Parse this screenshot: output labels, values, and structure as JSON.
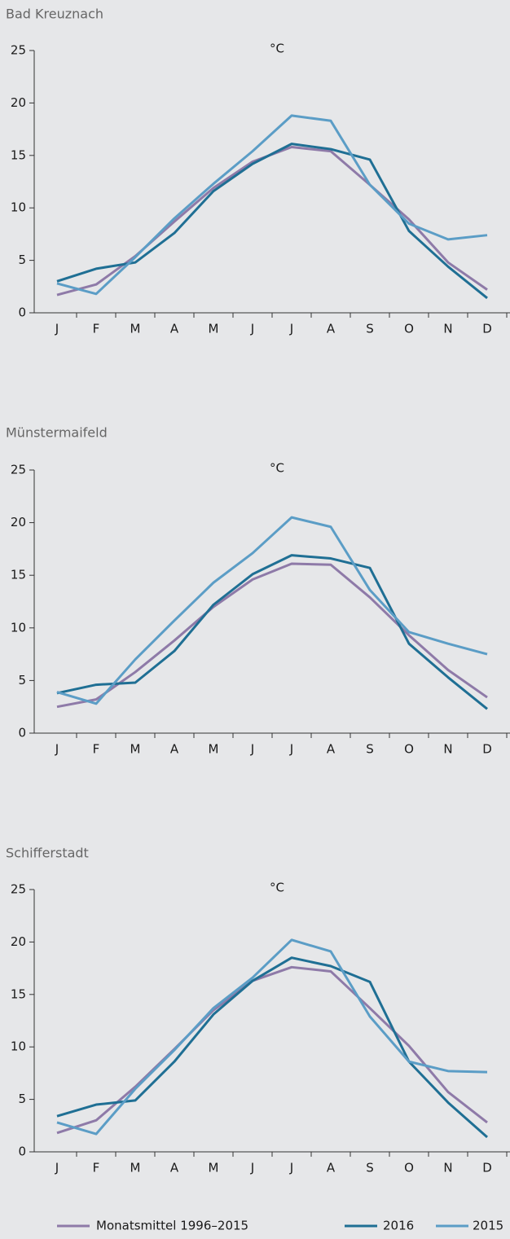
{
  "chart_data": [
    {
      "type": "line",
      "title": "Bad Kreuznach",
      "unit": "°C",
      "categories": [
        "J",
        "F",
        "M",
        "A",
        "M",
        "J",
        "J",
        "A",
        "S",
        "O",
        "N",
        "D"
      ],
      "ylim": [
        0,
        25
      ],
      "yticks": [
        0,
        5,
        10,
        15,
        20,
        25
      ],
      "series": [
        {
          "name": "Monatsmittel 1996–2015",
          "color": "#8e7aa8",
          "values": [
            1.7,
            2.7,
            5.4,
            8.7,
            11.9,
            14.4,
            15.8,
            15.4,
            12.2,
            8.9,
            4.8,
            2.2
          ]
        },
        {
          "name": "2016",
          "color": "#1f6f94",
          "values": [
            3.0,
            4.2,
            4.8,
            7.6,
            11.6,
            14.2,
            16.1,
            15.6,
            14.6,
            7.8,
            4.4,
            1.4
          ]
        },
        {
          "name": "2015",
          "color": "#5b9dc6",
          "values": [
            2.8,
            1.8,
            5.3,
            9.0,
            12.3,
            15.4,
            18.8,
            18.3,
            12.2,
            8.5,
            7.0,
            7.4
          ]
        }
      ]
    },
    {
      "type": "line",
      "title": "Münstermaifeld",
      "unit": "°C",
      "categories": [
        "J",
        "F",
        "M",
        "A",
        "M",
        "J",
        "J",
        "A",
        "S",
        "O",
        "N",
        "D"
      ],
      "ylim": [
        0,
        25
      ],
      "yticks": [
        0,
        5,
        10,
        15,
        20,
        25
      ],
      "series": [
        {
          "color": "#8e7aa8",
          "values": [
            2.5,
            3.2,
            5.8,
            8.8,
            12.0,
            14.6,
            16.1,
            16.0,
            12.9,
            9.3,
            6.0,
            3.4
          ]
        },
        {
          "color": "#1f6f94",
          "values": [
            3.8,
            4.6,
            4.8,
            7.8,
            12.2,
            15.1,
            16.9,
            16.6,
            15.7,
            8.5,
            5.3,
            2.3
          ]
        },
        {
          "color": "#5b9dc6",
          "values": [
            3.9,
            2.8,
            7.0,
            10.7,
            14.3,
            17.1,
            20.5,
            19.6,
            13.6,
            9.6,
            8.5,
            7.5
          ]
        }
      ]
    },
    {
      "type": "line",
      "title": "Schifferstadt",
      "unit": "°C",
      "categories": [
        "J",
        "F",
        "M",
        "A",
        "M",
        "J",
        "J",
        "A",
        "S",
        "O",
        "N",
        "D"
      ],
      "ylim": [
        0,
        25
      ],
      "yticks": [
        0,
        5,
        10,
        15,
        20,
        25
      ],
      "series": [
        {
          "color": "#8e7aa8",
          "values": [
            1.8,
            3.0,
            6.2,
            9.8,
            13.5,
            16.3,
            17.6,
            17.2,
            13.7,
            10.1,
            5.7,
            2.8
          ]
        },
        {
          "color": "#1f6f94",
          "values": [
            3.4,
            4.5,
            4.9,
            8.6,
            13.1,
            16.3,
            18.5,
            17.7,
            16.2,
            8.6,
            4.7,
            1.4
          ]
        },
        {
          "color": "#5b9dc6",
          "values": [
            2.8,
            1.7,
            6.0,
            9.7,
            13.7,
            16.6,
            20.2,
            19.1,
            12.9,
            8.6,
            7.7,
            7.6
          ]
        }
      ]
    }
  ]
}
